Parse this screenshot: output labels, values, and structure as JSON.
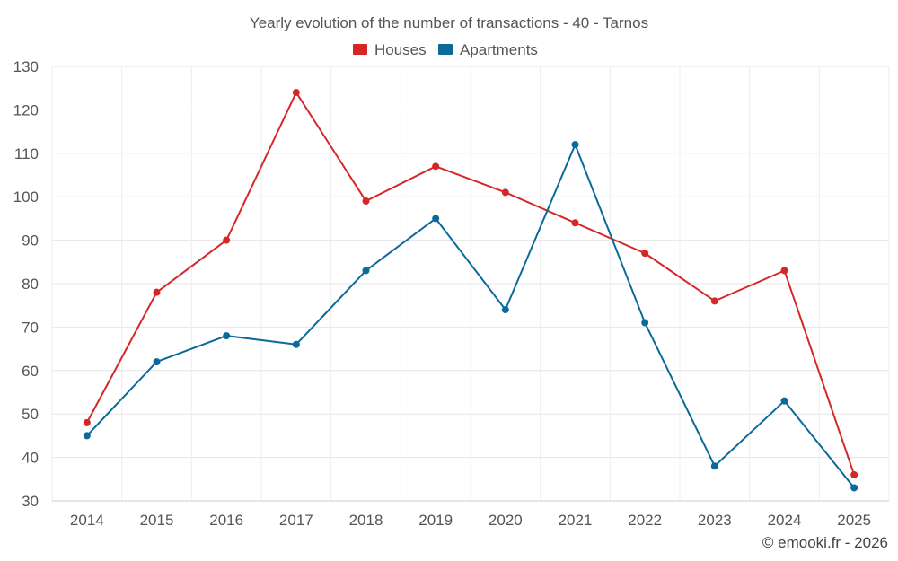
{
  "chart_data": {
    "type": "line",
    "title": "Yearly evolution of the number of transactions - 40 - Tarnos",
    "categories": [
      "2014",
      "2015",
      "2016",
      "2017",
      "2018",
      "2019",
      "2020",
      "2021",
      "2022",
      "2023",
      "2024",
      "2025"
    ],
    "series": [
      {
        "name": "Houses",
        "color": "#d62728",
        "values": [
          48,
          78,
          90,
          124,
          99,
          107,
          101,
          94,
          87,
          76,
          83,
          36
        ]
      },
      {
        "name": "Apartments",
        "color": "#0b6a9a",
        "values": [
          45,
          62,
          68,
          66,
          83,
          95,
          74,
          112,
          71,
          38,
          53,
          33
        ]
      }
    ],
    "ylim": [
      30,
      130
    ],
    "yticks": [
      30,
      40,
      50,
      60,
      70,
      80,
      90,
      100,
      110,
      120,
      130
    ],
    "xlabel": "",
    "ylabel": "",
    "grid": true,
    "legend": "top-center"
  },
  "footer": {
    "copyright": "© emooki.fr - 2026"
  }
}
